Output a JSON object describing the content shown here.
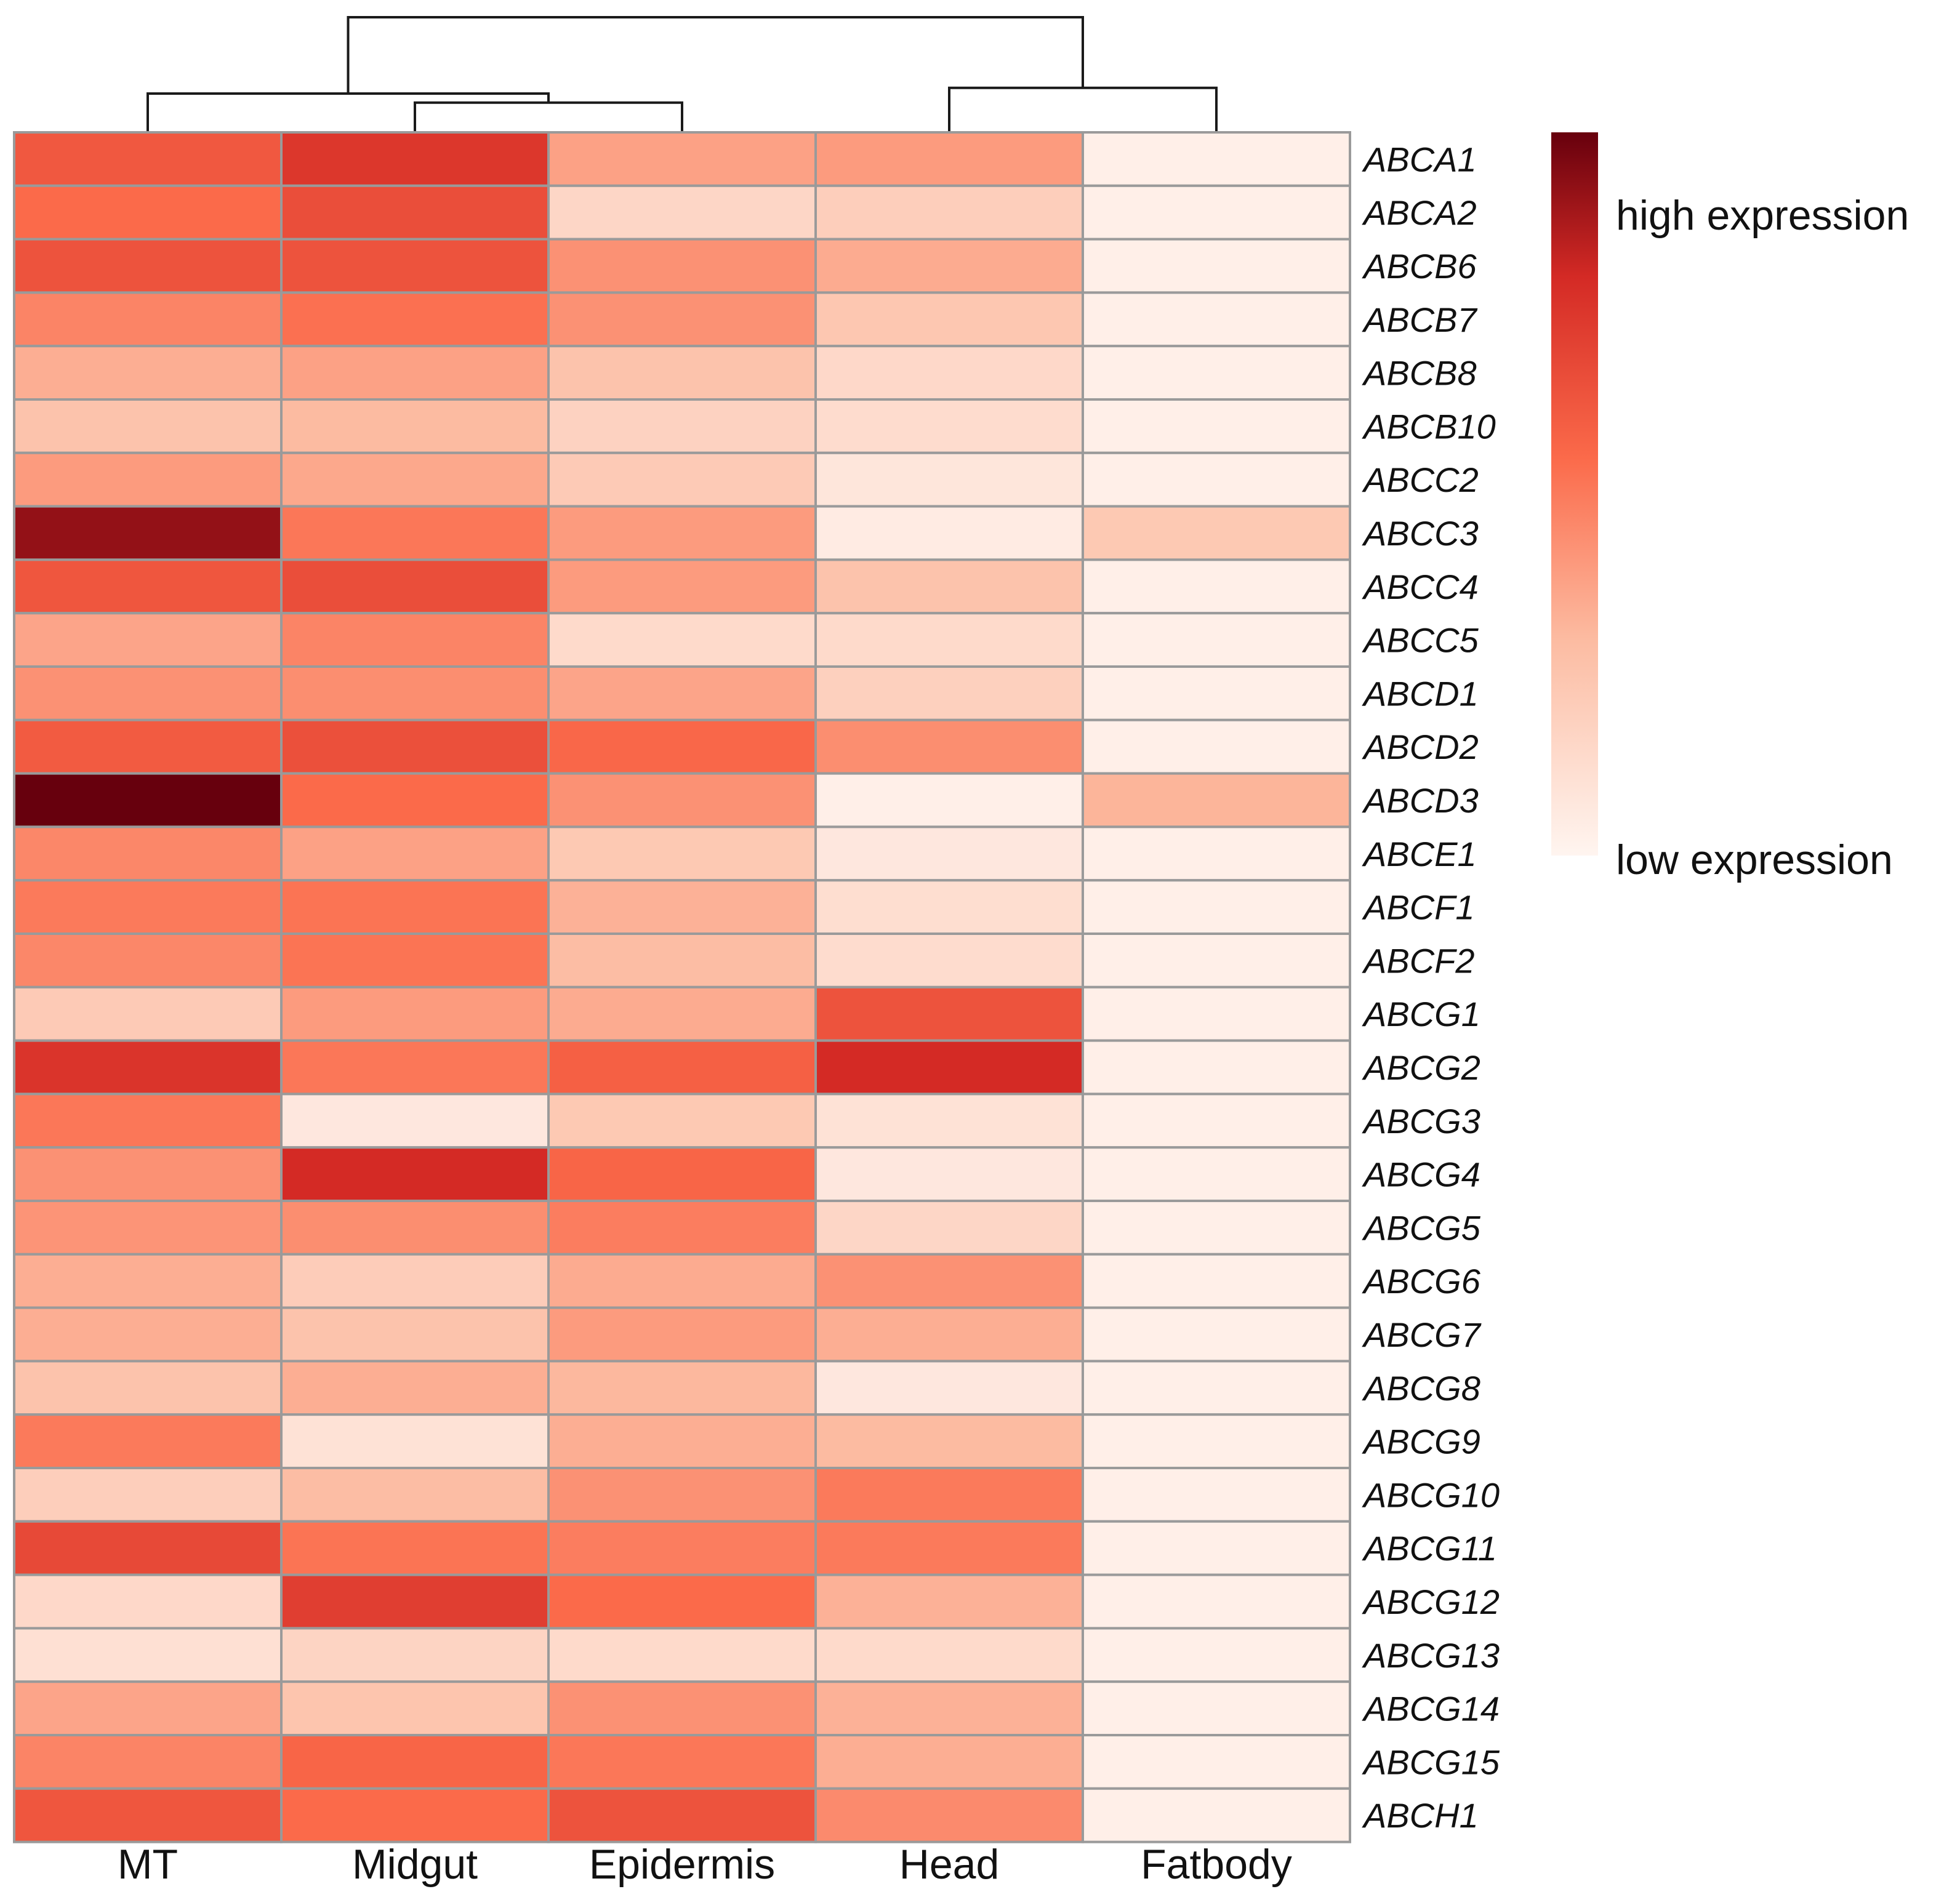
{
  "chart_data": {
    "type": "heatmap",
    "columns": [
      "MT",
      "Midgut",
      "Epidermis",
      "Head",
      "Fatbody"
    ],
    "rows": [
      "ABCA1",
      "ABCA2",
      "ABCB6",
      "ABCB7",
      "ABCB8",
      "ABCB10",
      "ABCC2",
      "ABCC3",
      "ABCC4",
      "ABCC5",
      "ABCD1",
      "ABCD2",
      "ABCD3",
      "ABCE1",
      "ABCF1",
      "ABCF2",
      "ABCG1",
      "ABCG2",
      "ABCG3",
      "ABCG4",
      "ABCG5",
      "ABCG6",
      "ABCG7",
      "ABCG8",
      "ABCG9",
      "ABCG10",
      "ABCG11",
      "ABCG12",
      "ABCG13",
      "ABCG14",
      "ABCG15",
      "ABCH1"
    ],
    "values": [
      [
        0.62,
        0.75,
        0.38,
        0.4,
        0.03
      ],
      [
        0.55,
        0.66,
        0.16,
        0.2,
        0.03
      ],
      [
        0.64,
        0.64,
        0.43,
        0.35,
        0.03
      ],
      [
        0.47,
        0.53,
        0.43,
        0.24,
        0.03
      ],
      [
        0.34,
        0.38,
        0.26,
        0.15,
        0.03
      ],
      [
        0.26,
        0.3,
        0.18,
        0.13,
        0.03
      ],
      [
        0.4,
        0.36,
        0.22,
        0.08,
        0.03
      ],
      [
        0.92,
        0.51,
        0.4,
        0.05,
        0.23
      ],
      [
        0.63,
        0.66,
        0.4,
        0.26,
        0.03
      ],
      [
        0.37,
        0.47,
        0.14,
        0.14,
        0.03
      ],
      [
        0.43,
        0.44,
        0.37,
        0.19,
        0.03
      ],
      [
        0.61,
        0.65,
        0.56,
        0.44,
        0.03
      ],
      [
        1.0,
        0.55,
        0.43,
        0.03,
        0.32
      ],
      [
        0.46,
        0.38,
        0.23,
        0.07,
        0.03
      ],
      [
        0.5,
        0.52,
        0.33,
        0.12,
        0.03
      ],
      [
        0.46,
        0.52,
        0.29,
        0.13,
        0.03
      ],
      [
        0.22,
        0.4,
        0.35,
        0.64,
        0.03
      ],
      [
        0.76,
        0.51,
        0.59,
        0.8,
        0.03
      ],
      [
        0.51,
        0.07,
        0.23,
        0.1,
        0.03
      ],
      [
        0.43,
        0.8,
        0.57,
        0.07,
        0.03
      ],
      [
        0.42,
        0.44,
        0.49,
        0.16,
        0.03
      ],
      [
        0.34,
        0.21,
        0.35,
        0.43,
        0.03
      ],
      [
        0.34,
        0.26,
        0.4,
        0.34,
        0.03
      ],
      [
        0.26,
        0.34,
        0.31,
        0.07,
        0.03
      ],
      [
        0.5,
        0.1,
        0.34,
        0.3,
        0.03
      ],
      [
        0.2,
        0.29,
        0.43,
        0.5,
        0.03
      ],
      [
        0.68,
        0.52,
        0.49,
        0.5,
        0.03
      ],
      [
        0.15,
        0.72,
        0.55,
        0.33,
        0.03
      ],
      [
        0.11,
        0.17,
        0.14,
        0.14,
        0.03
      ],
      [
        0.37,
        0.25,
        0.43,
        0.33,
        0.03
      ],
      [
        0.47,
        0.57,
        0.51,
        0.34,
        0.03
      ],
      [
        0.63,
        0.55,
        0.64,
        0.45,
        0.03
      ]
    ],
    "color_scale": {
      "low": "#fff5f0",
      "mid_low": "#fcbba1",
      "mid": "#fb6a4a",
      "mid_high": "#d42a25",
      "high": "#67000d"
    },
    "legend": {
      "high_label": "high expression",
      "low_label": "low expression",
      "position": "right"
    },
    "column_dendrogram": {
      "merges": [
        {
          "left": "Midgut",
          "right": "Epidermis",
          "height": 0.25
        },
        {
          "left": "MT",
          "right": "Midgut+Epidermis",
          "height": 0.33
        },
        {
          "left": "Head",
          "right": "Fatbody",
          "height": 0.38
        },
        {
          "left": "MT+Midgut+Epidermis",
          "right": "Head+Fatbody",
          "height": 1.0
        }
      ]
    }
  }
}
